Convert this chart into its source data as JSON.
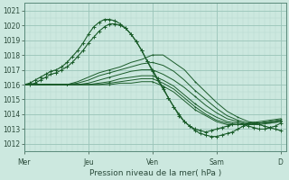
{
  "xlabel": "Pression niveau de la mer( hPa )",
  "ylim": [
    1011.5,
    1021.5
  ],
  "yticks": [
    1012,
    1013,
    1014,
    1015,
    1016,
    1017,
    1018,
    1019,
    1020,
    1021
  ],
  "xtick_labels": [
    "Mer",
    "Jeu",
    "Ven",
    "Sam",
    "D"
  ],
  "xtick_positions": [
    0,
    48,
    96,
    144,
    192
  ],
  "bg_color": "#cce8df",
  "grid_color_minor": "#b8d9cf",
  "grid_color_major": "#99c4b8",
  "line_color": "#1a5c2a",
  "total_hours": 196,
  "series": [
    {
      "x": [
        0,
        12,
        24,
        36,
        48,
        60,
        72,
        84,
        96,
        108,
        120,
        132,
        144,
        156,
        168,
        180,
        192
      ],
      "y": [
        1016.0,
        1016.5,
        1017.0,
        1017.5,
        1018.5,
        1019.5,
        1020.3,
        1020.4,
        1019.5,
        1018.0,
        1016.5,
        1015.0,
        1013.5,
        1012.8,
        1012.5,
        1012.8,
        1013.3
      ],
      "has_markers": true
    },
    {
      "x": [
        0,
        12,
        24,
        36,
        48,
        60,
        72,
        84,
        96,
        108,
        120,
        132,
        144,
        156,
        168,
        180,
        192
      ],
      "y": [
        1016.0,
        1016.4,
        1016.8,
        1017.2,
        1018.0,
        1019.0,
        1019.8,
        1020.2,
        1019.8,
        1018.5,
        1017.2,
        1015.5,
        1014.0,
        1013.2,
        1013.0,
        1013.2,
        1013.5
      ],
      "has_markers": true
    },
    {
      "x": [
        0,
        192
      ],
      "y": [
        1016.0,
        1014.0
      ],
      "has_markers": false
    },
    {
      "x": [
        0,
        192
      ],
      "y": [
        1016.0,
        1013.7
      ],
      "has_markers": false
    },
    {
      "x": [
        0,
        192
      ],
      "y": [
        1016.0,
        1013.5
      ],
      "has_markers": false
    },
    {
      "x": [
        0,
        192
      ],
      "y": [
        1016.0,
        1013.4
      ],
      "has_markers": false
    },
    {
      "x": [
        0,
        192
      ],
      "y": [
        1016.0,
        1013.3
      ],
      "has_markers": false
    },
    {
      "x": [
        0,
        192
      ],
      "y": [
        1016.0,
        1013.2
      ],
      "has_markers": false
    }
  ],
  "series_detailed": [
    {
      "x": [
        0,
        4,
        8,
        12,
        16,
        20,
        24,
        28,
        32,
        36,
        40,
        44,
        48,
        52,
        56,
        60,
        64,
        68,
        72,
        76,
        80,
        84,
        88,
        92,
        96,
        100,
        104,
        108,
        112,
        116,
        120,
        124,
        128,
        132,
        136,
        140,
        144,
        148,
        152,
        156,
        160,
        164,
        168,
        172,
        176,
        180,
        184,
        188,
        192
      ],
      "y": [
        1016.0,
        1016.1,
        1016.3,
        1016.5,
        1016.7,
        1016.9,
        1017.0,
        1017.2,
        1017.5,
        1017.9,
        1018.3,
        1018.8,
        1019.4,
        1019.9,
        1020.2,
        1020.4,
        1020.4,
        1020.3,
        1020.1,
        1019.8,
        1019.4,
        1018.9,
        1018.3,
        1017.6,
        1017.0,
        1016.4,
        1015.8,
        1015.1,
        1014.5,
        1014.0,
        1013.5,
        1013.2,
        1012.9,
        1012.7,
        1012.6,
        1012.5,
        1012.5,
        1012.6,
        1012.7,
        1012.8,
        1013.0,
        1013.2,
        1013.4,
        1013.4,
        1013.3,
        1013.2,
        1013.1,
        1013.0,
        1012.9
      ]
    },
    {
      "x": [
        0,
        4,
        8,
        12,
        16,
        20,
        24,
        28,
        32,
        36,
        40,
        44,
        48,
        52,
        56,
        60,
        64,
        68,
        72,
        76,
        80,
        84,
        88,
        92,
        96,
        100,
        104,
        108,
        112,
        116,
        120,
        124,
        128,
        132,
        136,
        140,
        144,
        148,
        152,
        156,
        160,
        164,
        168,
        172,
        176,
        180,
        184,
        188,
        192
      ],
      "y": [
        1016.0,
        1016.0,
        1016.1,
        1016.3,
        1016.5,
        1016.7,
        1016.8,
        1017.0,
        1017.2,
        1017.5,
        1017.9,
        1018.3,
        1018.8,
        1019.2,
        1019.6,
        1019.9,
        1020.1,
        1020.1,
        1020.0,
        1019.8,
        1019.4,
        1018.9,
        1018.3,
        1017.6,
        1016.9,
        1016.3,
        1015.7,
        1015.1,
        1014.5,
        1013.9,
        1013.5,
        1013.2,
        1013.0,
        1012.9,
        1012.8,
        1012.9,
        1013.0,
        1013.1,
        1013.2,
        1013.3,
        1013.3,
        1013.3,
        1013.2,
        1013.1,
        1013.0,
        1013.0,
        1013.1,
        1013.2,
        1013.4
      ]
    },
    {
      "x": [
        0,
        8,
        16,
        24,
        32,
        40,
        48,
        56,
        64,
        72,
        80,
        88,
        96,
        104,
        112,
        120,
        128,
        136,
        144,
        152,
        160,
        168,
        176,
        184,
        192
      ],
      "y": [
        1016.0,
        1016.0,
        1016.0,
        1016.0,
        1016.0,
        1016.2,
        1016.5,
        1016.8,
        1017.0,
        1017.2,
        1017.5,
        1017.7,
        1018.0,
        1018.0,
        1017.5,
        1017.0,
        1016.2,
        1015.5,
        1014.8,
        1014.2,
        1013.8,
        1013.5,
        1013.4,
        1013.5,
        1013.6
      ]
    },
    {
      "x": [
        0,
        8,
        16,
        24,
        32,
        40,
        48,
        56,
        64,
        72,
        80,
        88,
        96,
        104,
        112,
        120,
        128,
        136,
        144,
        152,
        160,
        168,
        176,
        184,
        192
      ],
      "y": [
        1016.0,
        1016.0,
        1016.0,
        1016.0,
        1016.0,
        1016.1,
        1016.3,
        1016.6,
        1016.8,
        1017.0,
        1017.2,
        1017.4,
        1017.5,
        1017.3,
        1016.9,
        1016.3,
        1015.6,
        1015.0,
        1014.4,
        1013.9,
        1013.6,
        1013.4,
        1013.4,
        1013.4,
        1013.5
      ]
    },
    {
      "x": [
        0,
        8,
        16,
        24,
        32,
        40,
        48,
        56,
        64,
        72,
        80,
        88,
        96,
        104,
        112,
        120,
        128,
        136,
        144,
        152,
        160,
        168,
        176,
        184,
        192
      ],
      "y": [
        1016.0,
        1016.0,
        1016.0,
        1016.0,
        1016.0,
        1016.0,
        1016.1,
        1016.3,
        1016.5,
        1016.7,
        1016.9,
        1017.0,
        1017.0,
        1016.7,
        1016.3,
        1015.8,
        1015.2,
        1014.6,
        1014.1,
        1013.7,
        1013.5,
        1013.3,
        1013.3,
        1013.4,
        1013.5
      ]
    },
    {
      "x": [
        0,
        8,
        16,
        24,
        32,
        40,
        48,
        56,
        64,
        72,
        80,
        88,
        96,
        104,
        112,
        120,
        128,
        136,
        144,
        152,
        160,
        168,
        176,
        184,
        192
      ],
      "y": [
        1016.0,
        1016.0,
        1016.0,
        1016.0,
        1016.0,
        1016.0,
        1016.0,
        1016.1,
        1016.2,
        1016.4,
        1016.5,
        1016.6,
        1016.6,
        1016.3,
        1015.9,
        1015.3,
        1014.7,
        1014.2,
        1013.8,
        1013.5,
        1013.4,
        1013.3,
        1013.4,
        1013.5,
        1013.6
      ]
    },
    {
      "x": [
        0,
        8,
        16,
        24,
        32,
        40,
        48,
        56,
        64,
        72,
        80,
        88,
        96,
        104,
        112,
        120,
        128,
        136,
        144,
        152,
        160,
        168,
        176,
        184,
        192
      ],
      "y": [
        1016.0,
        1016.0,
        1016.0,
        1016.0,
        1016.0,
        1016.0,
        1016.0,
        1016.0,
        1016.1,
        1016.2,
        1016.3,
        1016.4,
        1016.4,
        1016.1,
        1015.7,
        1015.1,
        1014.5,
        1014.0,
        1013.6,
        1013.4,
        1013.3,
        1013.3,
        1013.4,
        1013.5,
        1013.6
      ]
    },
    {
      "x": [
        0,
        8,
        16,
        24,
        32,
        40,
        48,
        56,
        64,
        72,
        80,
        88,
        96,
        104,
        112,
        120,
        128,
        136,
        144,
        152,
        160,
        168,
        176,
        184,
        192
      ],
      "y": [
        1016.0,
        1016.0,
        1016.0,
        1016.0,
        1016.0,
        1016.0,
        1016.0,
        1016.0,
        1016.0,
        1016.1,
        1016.1,
        1016.2,
        1016.2,
        1015.9,
        1015.5,
        1014.9,
        1014.3,
        1013.9,
        1013.5,
        1013.3,
        1013.3,
        1013.4,
        1013.5,
        1013.6,
        1013.7
      ]
    }
  ]
}
